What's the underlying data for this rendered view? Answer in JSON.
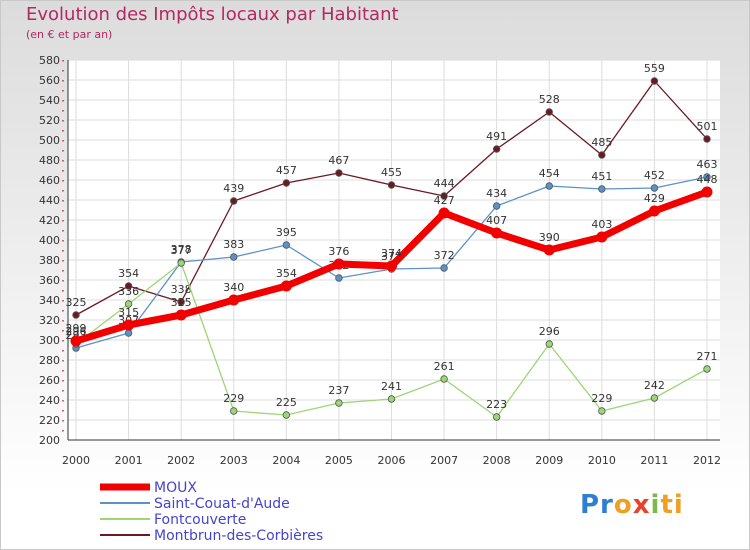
{
  "header": {
    "title": "Evolution des Impôts locaux par Habitant",
    "subtitle": "(en € et par an)"
  },
  "logo": {
    "text": "Proxiti",
    "p": "Pr",
    "o": "o",
    "x": "x",
    "i": "i",
    "ti": "ti"
  },
  "chart_data": {
    "type": "line",
    "title": "Evolution des Impôts locaux par Habitant",
    "subtitle": "(en € et par an)",
    "x": [
      "2000",
      "2001",
      "2002",
      "2003",
      "2004",
      "2005",
      "2006",
      "2007",
      "2008",
      "2009",
      "2010",
      "2011",
      "2012"
    ],
    "ylim": [
      200,
      580
    ],
    "yticks": [
      200,
      220,
      240,
      260,
      280,
      300,
      320,
      340,
      360,
      380,
      400,
      420,
      440,
      460,
      480,
      500,
      520,
      540,
      560,
      580
    ],
    "grid": true,
    "legend_position": "bottom-left",
    "series": [
      {
        "name": "Montbrun-des-Corbières",
        "color": "#6b1a24",
        "values": [
          325,
          354,
          338,
          439,
          457,
          467,
          455,
          444,
          491,
          528,
          485,
          559,
          501
        ],
        "labels": [
          "325",
          "354",
          "338",
          "439",
          "457",
          "467",
          "455",
          "444",
          "491",
          "528",
          "485",
          "559",
          "501"
        ]
      },
      {
        "name": "Saint-Couat-d'Aude",
        "color": "#5b92c8",
        "values": [
          292,
          307,
          378,
          383,
          395,
          362,
          371,
          372,
          434,
          454,
          451,
          452,
          463
        ],
        "labels": [
          "292",
          "307",
          "378",
          "383",
          "395",
          "362",
          "371",
          "372",
          "434",
          "454",
          "451",
          "452",
          "463"
        ]
      },
      {
        "name": "Fontcouverte",
        "color": "#9cd675",
        "values": [
          296,
          336,
          377,
          229,
          225,
          237,
          241,
          261,
          223,
          296,
          229,
          242,
          271
        ],
        "labels": [
          "296",
          "336",
          "377",
          "229",
          "225",
          "237",
          "241",
          "261",
          "223",
          "296",
          "229",
          "242",
          "271"
        ]
      },
      {
        "name": "MOUX",
        "color": "#f20000",
        "values": [
          299,
          315,
          325,
          340,
          354,
          376,
          374,
          427,
          407,
          390,
          403,
          429,
          448
        ],
        "labels": [
          "299",
          "315",
          "325",
          "340",
          "354",
          "376",
          "374",
          "427",
          "407",
          "390",
          "403",
          "429",
          "448"
        ]
      }
    ],
    "legend_order": [
      "MOUX",
      "Saint-Couat-d'Aude",
      "Fontcouverte",
      "Montbrun-des-Corbières"
    ]
  }
}
